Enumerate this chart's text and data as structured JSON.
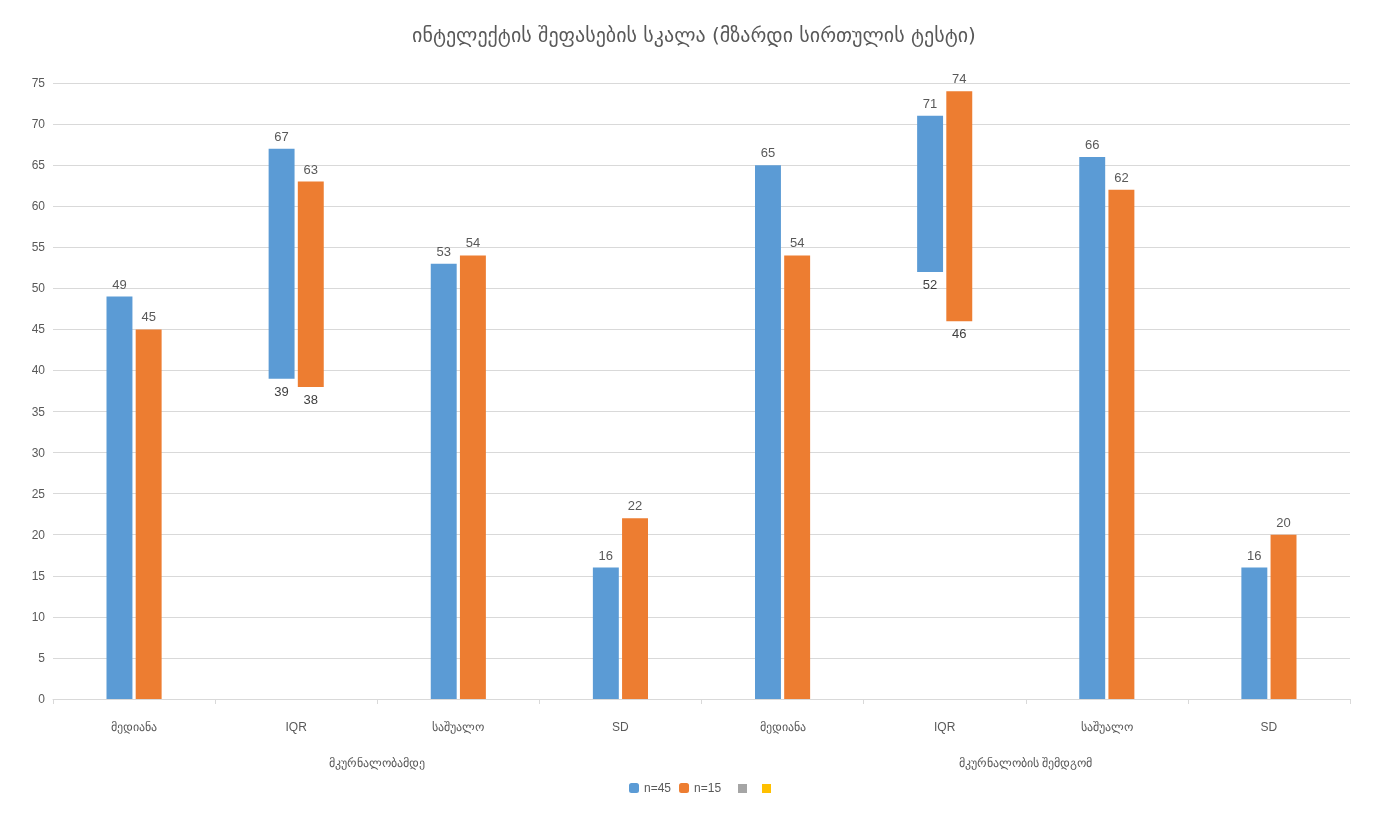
{
  "chart_data": {
    "type": "bar",
    "title": "ინტელექტის შეფასების სკალა (მზარდი სირთულის ტესტი)",
    "categories": [
      "მედიანა",
      "IQR",
      "საშუალო",
      "SD",
      "მედიანა",
      "IQR",
      "საშუალო",
      "SD"
    ],
    "annotations": [
      "მკურნალობამდე",
      "მკურნალობის შემდგომ",
      {
        "text": "39",
        "x": "IQR",
        "y": 39
      },
      {
        "text": "38",
        "x": "IQR",
        "y": 38
      },
      {
        "text": "52",
        "y": 52
      },
      {
        "text": "46",
        "y": 46
      }
    ],
    "series": [
      {
        "name": "n=45",
        "color": "#5b9bd5",
        "values": [
          49,
          28,
          53,
          16,
          65,
          19,
          66,
          16
        ],
        "base": [
          0,
          39,
          0,
          0,
          0,
          52,
          0,
          0
        ],
        "value_labels": [
          "49",
          "67",
          "53",
          "16",
          "65",
          "71",
          "66",
          "16"
        ]
      },
      {
        "name": "n=15",
        "color": "#ed7d31",
        "values": [
          45,
          25,
          54,
          22,
          54,
          28,
          62,
          20
        ],
        "base": [
          0,
          38,
          0,
          0,
          0,
          46,
          0,
          0
        ],
        "value_labels": [
          "45",
          "63",
          "54",
          "22",
          "54",
          "74",
          "62",
          "20"
        ]
      }
    ],
    "ylim": [
      0,
      75
    ],
    "yticks": [
      0,
      5,
      10,
      15,
      20,
      25,
      30,
      35,
      40,
      45,
      50,
      55,
      60,
      65,
      70,
      75
    ],
    "grid": "y",
    "legend": "bottom"
  }
}
